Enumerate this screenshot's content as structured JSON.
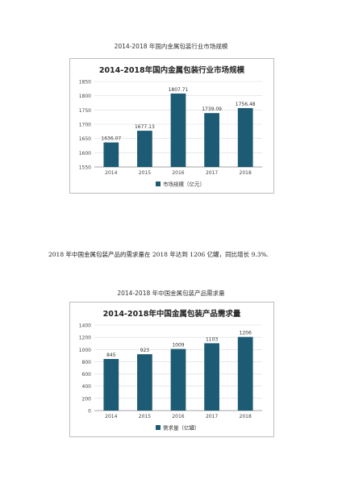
{
  "caption1": "2014-2018 年国内金属包装行业市场规模",
  "paragraph": "2018 年中国金属包装产品的需求量在 2018 年达到 1206 亿罐，同比增长 9.3%.",
  "caption2": "2014-2018 年中国金属包装产品需求量",
  "series_color": "#1c5b73",
  "chart_data": [
    {
      "type": "bar",
      "title": "2014-2018年国内金属包装行业市场规模",
      "categories": [
        "2014",
        "2015",
        "2016",
        "2017",
        "2018"
      ],
      "series": [
        {
          "name": "市场规模（亿元）",
          "values": [
            1636.07,
            1677.13,
            1807.71,
            1739.09,
            1756.48
          ]
        }
      ],
      "data_labels": [
        "1636.07",
        "1677.13",
        "1807.71",
        "1739.09",
        "1756.48"
      ],
      "ylim": [
        1550,
        1850
      ],
      "yticks": [
        1550,
        1600,
        1650,
        1700,
        1750,
        1800,
        1850
      ],
      "grid": true,
      "legend": "bottom"
    },
    {
      "type": "bar",
      "title": "2014-2018年中国金属包装产品需求量",
      "categories": [
        "2014",
        "2015",
        "2016",
        "2017",
        "2018"
      ],
      "series": [
        {
          "name": "需求量（亿罐）",
          "values": [
            845,
            923,
            1009,
            1103,
            1206
          ]
        }
      ],
      "data_labels": [
        "845",
        "923",
        "1009",
        "1103",
        "1206"
      ],
      "ylim": [
        0,
        1400
      ],
      "yticks": [
        0,
        200,
        400,
        600,
        800,
        1000,
        1200,
        1400
      ],
      "grid": true,
      "legend": "bottom"
    }
  ]
}
